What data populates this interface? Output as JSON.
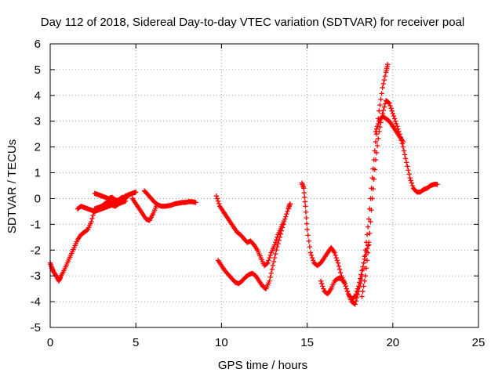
{
  "chart_data": {
    "type": "scatter",
    "title": "Day 112 of 2018, Sidereal Day-to-day VTEC variation (SDTVAR) for receiver poal",
    "xlabel": "GPS time / hours",
    "ylabel": "SDTVAR / TECUs",
    "xlim": [
      0,
      25
    ],
    "ylim": [
      -5,
      6
    ],
    "xticks": [
      0,
      5,
      10,
      15,
      20,
      25
    ],
    "yticks": [
      -5,
      -4,
      -3,
      -2,
      -1,
      0,
      1,
      2,
      3,
      4,
      5,
      6
    ],
    "grid": true,
    "marker": "+",
    "color": "#ff0000",
    "series": [
      {
        "x": [
          0.0,
          0.1,
          0.2,
          0.35,
          0.5,
          0.6,
          0.8,
          1.0,
          1.2,
          1.4,
          1.6,
          1.8,
          2.0,
          2.2,
          2.4,
          2.6,
          2.8,
          3.0,
          3.2,
          3.4,
          3.6,
          3.8,
          4.0,
          4.2,
          4.4,
          4.6,
          4.8,
          5.0
        ],
        "y": [
          -2.5,
          -2.7,
          -2.85,
          -3.0,
          -3.2,
          -3.05,
          -2.8,
          -2.5,
          -2.2,
          -1.9,
          -1.6,
          -1.4,
          -1.3,
          -1.2,
          -0.9,
          -0.4,
          -0.35,
          -0.3,
          -0.2,
          -0.1,
          -0.15,
          -0.1,
          -0.05,
          0.05,
          0.0,
          0.15,
          0.2,
          0.25
        ]
      },
      {
        "x": [
          1.6,
          1.8,
          2.0,
          2.2,
          2.4,
          2.6,
          2.8,
          3.0,
          3.2,
          3.4,
          3.6,
          3.8,
          4.0,
          4.2,
          4.4
        ],
        "y": [
          -0.4,
          -0.3,
          -0.35,
          -0.4,
          -0.45,
          -0.5,
          -0.45,
          -0.4,
          -0.35,
          -0.3,
          -0.25,
          -0.3,
          -0.2,
          -0.15,
          -0.1
        ]
      },
      {
        "x": [
          2.6,
          2.8,
          3.0,
          3.2,
          3.4,
          3.6,
          3.8,
          4.0,
          4.2,
          4.4,
          4.6,
          4.8
        ],
        "y": [
          0.2,
          0.15,
          0.1,
          0.05,
          0.0,
          0.05,
          -0.05,
          -0.1,
          0.0,
          0.1,
          0.15,
          0.2
        ]
      },
      {
        "x": [
          4.8,
          5.0,
          5.2,
          5.4,
          5.6,
          5.8,
          6.0,
          6.2
        ],
        "y": [
          0.0,
          -0.2,
          -0.4,
          -0.6,
          -0.8,
          -0.85,
          -0.6,
          -0.3
        ]
      },
      {
        "x": [
          5.5,
          5.7,
          5.9,
          6.1,
          6.3,
          6.5,
          6.7,
          6.9,
          7.1,
          7.3,
          7.5,
          7.7,
          7.9,
          8.1,
          8.3,
          8.5
        ],
        "y": [
          0.3,
          0.15,
          0.0,
          -0.15,
          -0.25,
          -0.3,
          -0.3,
          -0.28,
          -0.25,
          -0.2,
          -0.18,
          -0.15,
          -0.15,
          -0.12,
          -0.12,
          -0.15
        ]
      },
      {
        "x": [
          9.7,
          9.9,
          10.1,
          10.3,
          10.5,
          10.7,
          10.9,
          11.1,
          11.3,
          11.5,
          11.7,
          11.9,
          12.1,
          12.3,
          12.5,
          12.7,
          12.9,
          13.1,
          13.3,
          13.5,
          13.7,
          13.9,
          14.0
        ],
        "y": [
          0.1,
          -0.3,
          -0.5,
          -0.7,
          -0.9,
          -1.1,
          -1.3,
          -1.4,
          -1.55,
          -1.7,
          -1.65,
          -1.8,
          -2.0,
          -2.3,
          -2.6,
          -2.5,
          -2.1,
          -1.8,
          -1.4,
          -1.1,
          -0.8,
          -0.4,
          -0.2
        ]
      },
      {
        "x": [
          9.8,
          10.0,
          10.2,
          10.4,
          10.6,
          10.8,
          11.0,
          11.2,
          11.4,
          11.6,
          11.8,
          12.0,
          12.2,
          12.4,
          12.6,
          12.8,
          13.0,
          13.2,
          13.4,
          13.6
        ],
        "y": [
          -2.4,
          -2.6,
          -2.8,
          -2.95,
          -3.1,
          -3.25,
          -3.3,
          -3.2,
          -3.05,
          -2.95,
          -2.9,
          -3.0,
          -3.2,
          -3.4,
          -3.5,
          -3.2,
          -2.6,
          -2.0,
          -1.5,
          -1.0
        ]
      },
      {
        "x": [
          14.7,
          14.8,
          14.9,
          15.0,
          15.2,
          15.4,
          15.6,
          15.8,
          16.0,
          16.2,
          16.4,
          16.6,
          16.8,
          17.0,
          17.2,
          17.4,
          17.6,
          17.8,
          18.0,
          18.2,
          18.4,
          18.6
        ],
        "y": [
          0.6,
          0.4,
          -0.3,
          -1.2,
          -2.1,
          -2.5,
          -2.6,
          -2.5,
          -2.3,
          -2.1,
          -1.9,
          -2.1,
          -2.5,
          -3.0,
          -3.3,
          -3.7,
          -3.9,
          -3.8,
          -3.4,
          -2.8,
          -2.2,
          -1.7
        ]
      },
      {
        "x": [
          15.8,
          16.0,
          16.2,
          16.4,
          16.6,
          16.8,
          17.0,
          17.2,
          17.4,
          17.6,
          17.8,
          18.0,
          18.2,
          18.4,
          18.6,
          18.8,
          19.0,
          19.2,
          19.4,
          19.6,
          19.7
        ],
        "y": [
          -3.2,
          -3.6,
          -3.7,
          -3.5,
          -3.2,
          -3.1,
          -3.1,
          -3.3,
          -3.7,
          -4.0,
          -4.1,
          -3.6,
          -3.0,
          -2.0,
          -0.8,
          0.8,
          2.2,
          3.4,
          4.3,
          4.9,
          5.2
        ]
      },
      {
        "x": [
          18.2,
          18.4,
          18.6,
          18.8,
          19.0,
          19.2,
          19.4,
          19.6,
          19.8,
          20.0,
          20.2,
          20.4,
          20.6,
          20.8,
          21.0,
          21.2,
          21.4,
          21.6,
          21.8,
          22.0,
          22.2,
          22.4,
          22.6
        ],
        "y": [
          -3.8,
          -3.0,
          -1.8,
          0.0,
          1.5,
          2.6,
          3.3,
          3.8,
          3.7,
          3.3,
          2.9,
          2.5,
          2.0,
          1.4,
          0.8,
          0.4,
          0.25,
          0.25,
          0.35,
          0.4,
          0.5,
          0.55,
          0.55
        ]
      },
      {
        "x": [
          19.0,
          19.2,
          19.4,
          19.6,
          19.8,
          20.0,
          20.2,
          20.4,
          20.6
        ],
        "y": [
          2.6,
          3.0,
          3.2,
          3.1,
          3.0,
          2.8,
          2.6,
          2.4,
          2.2
        ]
      }
    ]
  }
}
